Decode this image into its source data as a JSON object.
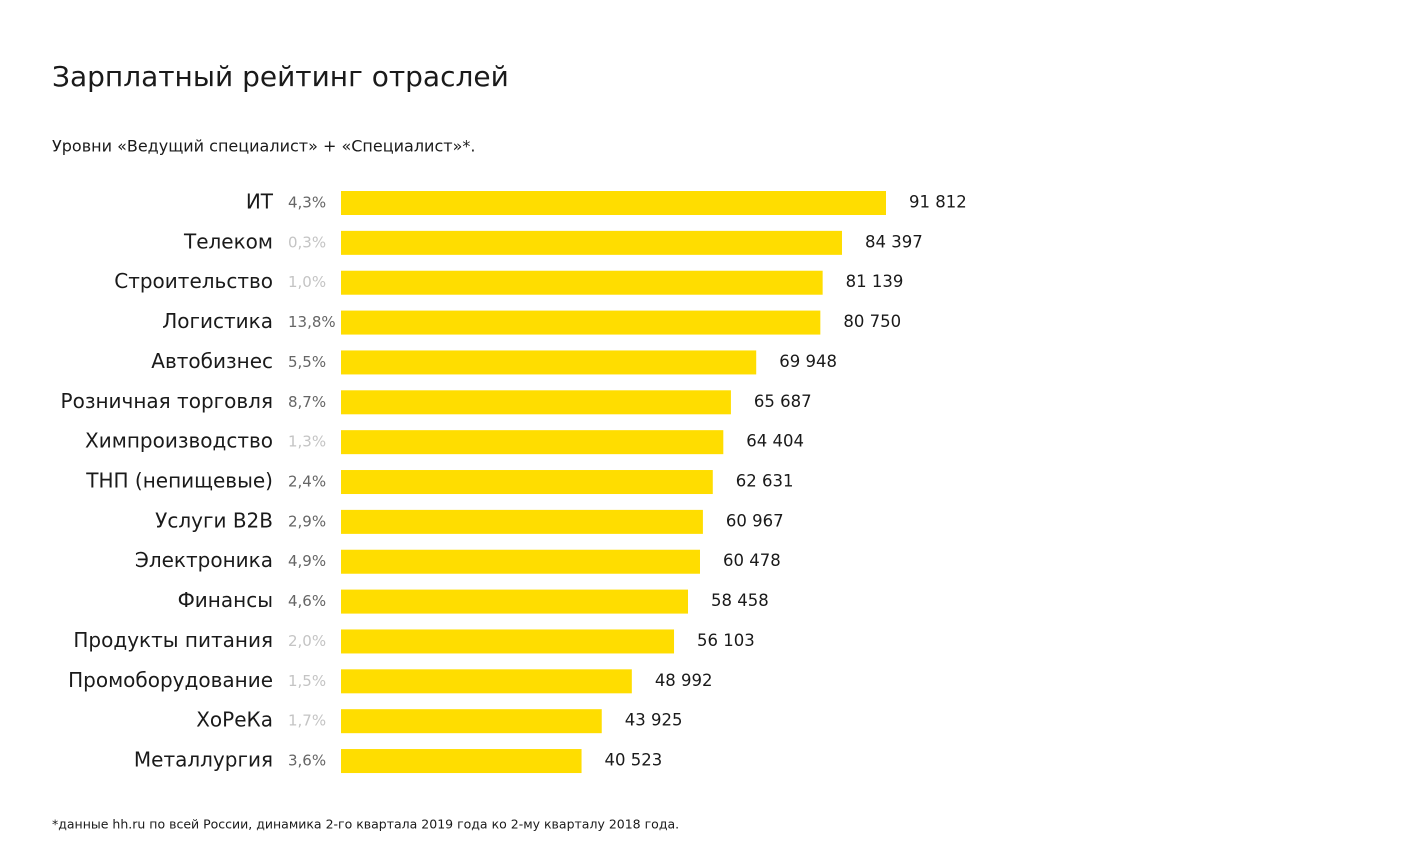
{
  "chart_data": {
    "type": "bar",
    "orientation": "horizontal",
    "title": "Зарплатный рейтинг отраслей",
    "subtitle": "Уровни «Ведущий специалист» + «Специалист»*.",
    "footnote": "*данные hh.ru по всей России, динамика 2-го квартала 2019 года ко 2-му кварталу 2018 года.",
    "color": "#ffdd00",
    "categories": [
      "ИТ",
      "Телеком",
      "Строительство",
      "Логистика",
      "Автобизнес",
      "Розничная торговля",
      "Химпроизводство",
      "ТНП (непищевые)",
      "Услуги B2B",
      "Электроника",
      "Финансы",
      "Продукты питания",
      "Промоборудование",
      "ХоРеКа",
      "Металлургия"
    ],
    "values": [
      91812,
      84397,
      81139,
      80750,
      69948,
      65687,
      64404,
      62631,
      60967,
      60478,
      58458,
      56103,
      48992,
      43925,
      40523
    ],
    "value_labels": [
      "91 812",
      "84 397",
      "81 139",
      "80 750",
      "69 948",
      "65 687",
      "64 404",
      "62 631",
      "60 967",
      "60 478",
      "58 458",
      "56 103",
      "48 992",
      "43 925",
      "40 523"
    ],
    "change_labels": [
      "4,3%",
      "0,3%",
      "1,0%",
      "13,8%",
      "5,5%",
      "8,7%",
      "1,3%",
      "2,4%",
      "2,9%",
      "4,9%",
      "4,6%",
      "2,0%",
      "1,5%",
      "1,7%",
      "3,6%"
    ],
    "change_colors": [
      "#666666",
      "#c4c4c4",
      "#c4c4c4",
      "#666666",
      "#666666",
      "#666666",
      "#c4c4c4",
      "#666666",
      "#666666",
      "#666666",
      "#666666",
      "#c4c4c4",
      "#c4c4c4",
      "#c4c4c4",
      "#666666"
    ]
  }
}
